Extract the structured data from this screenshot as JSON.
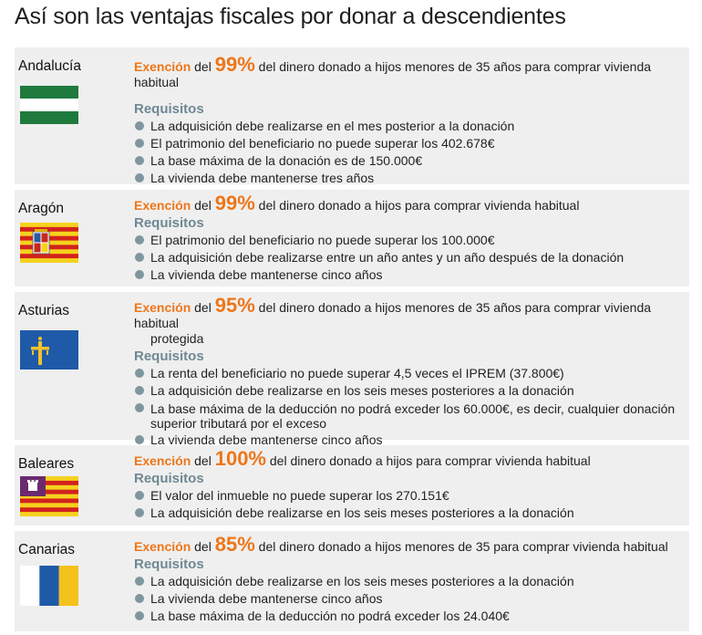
{
  "title": "Así son las ventajas fiscales por donar a descendientes",
  "regions": [
    {
      "name": "Andalucía",
      "flag_icon": "flag-andalucia-icon",
      "exencion_label": "Exención",
      "del": "del",
      "percent": "99%",
      "description": "del dinero donado a hijos menores de 35 años para comprar vivienda habitual",
      "description_cont": "",
      "requisitos_label": "Requisitos",
      "requisitos": [
        "La adquisición debe realizarse en el mes posterior a la donación",
        "El patrimonio del beneficiario no puede superar los 402.678€",
        "La base máxima de la donación es de 150.000€",
        "La vivienda debe mantenerse tres años"
      ]
    },
    {
      "name": "Aragón",
      "flag_icon": "flag-aragon-icon",
      "exencion_label": "Exención",
      "del": "del",
      "percent": "99%",
      "description": "del dinero donado a hijos para comprar vivienda habitual",
      "description_cont": "",
      "requisitos_label": "Requisitos",
      "requisitos": [
        "El patrimonio del beneficiario no puede superar los 100.000€",
        "La adquisición debe realizarse entre un año antes y un año después de la donación",
        "La vivienda debe mantenerse cinco años"
      ]
    },
    {
      "name": "Asturias",
      "flag_icon": "flag-asturias-icon",
      "exencion_label": "Exención",
      "del": "del",
      "percent": "95%",
      "description": "del dinero donado a hijos menores de 35 años para comprar vivienda habitual",
      "description_cont": "protegida",
      "requisitos_label": "Requisitos",
      "requisitos": [
        "La renta del beneficiario no puede superar 4,5 veces el IPREM (37.800€)",
        "La adquisición debe realizarse en los seis meses posteriores a la donación",
        "La base máxima de la deducción no podrá exceder los 60.000€, es decir, cualquier donación superior tributará por el exceso",
        "La vivienda debe mantenerse cinco años"
      ]
    },
    {
      "name": "Baleares",
      "flag_icon": "flag-baleares-icon",
      "exencion_label": "Exención",
      "del": "del",
      "percent": "100%",
      "description": "del dinero donado a hijos para comprar vivienda habitual",
      "description_cont": "",
      "requisitos_label": "Requisitos",
      "requisitos": [
        "El valor del inmueble no puede superar los 270.151€",
        "La adquisición debe realizarse en los seis meses posteriores a la donación"
      ]
    },
    {
      "name": "Canarias",
      "flag_icon": "flag-canarias-icon",
      "exencion_label": "Exención",
      "del": "del",
      "percent": "85%",
      "description": "del dinero donado a hijos menores de 35 para comprar vivienda habitual",
      "description_cont": "",
      "requisitos_label": "Requisitos",
      "requisitos": [
        "La adquisición debe realizarse en los seis meses posteriores a la donación",
        "La vivienda debe mantenerse cinco años",
        "La base máxima de la deducción no podrá exceder los 24.040€"
      ]
    }
  ],
  "colors": {
    "accent": "#ee7618",
    "requisitos": "#6f8894",
    "bullet": "#7f969f",
    "panel_bg": "#efefef"
  }
}
